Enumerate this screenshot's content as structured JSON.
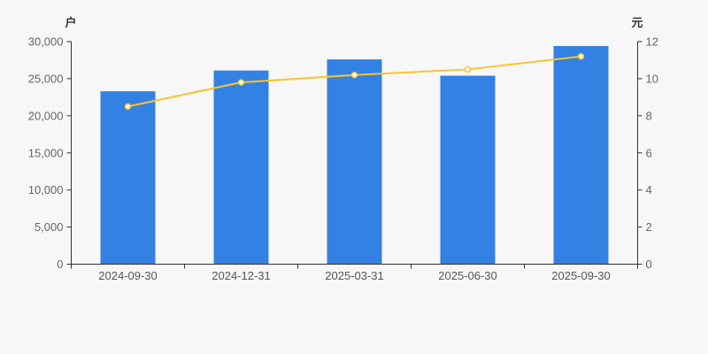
{
  "chart_data": {
    "type": "bar+line combo",
    "categories": [
      "2024-09-30",
      "2024-12-31",
      "2025-03-31",
      "2025-06-30",
      "2025-09-30"
    ],
    "series": [
      {
        "name": "户",
        "type": "bar",
        "axis": "left",
        "color": "#3381e2",
        "values": [
          23300,
          26100,
          27600,
          25400,
          29400
        ]
      },
      {
        "name": "元",
        "type": "line",
        "axis": "right",
        "color": "#fbc32c",
        "marker_fill": "#ffffff",
        "values": [
          8.5,
          9.8,
          10.2,
          10.5,
          11.2
        ]
      }
    ],
    "left_axis": {
      "label": "户",
      "min": 0,
      "max": 30000,
      "tick_step": 5000,
      "tick_labels": [
        "0",
        "5,000",
        "10,000",
        "15,000",
        "20,000",
        "25,000",
        "30,000"
      ]
    },
    "right_axis": {
      "label": "元",
      "min": 0,
      "max": 12,
      "tick_step": 2,
      "tick_labels": [
        "0",
        "2",
        "4",
        "6",
        "8",
        "10",
        "12"
      ]
    },
    "grid": false,
    "legend": false,
    "title": ""
  },
  "colors": {
    "background": "#f7f7f8",
    "axis_line": "#333333",
    "tick_label": "#666666",
    "category_label": "#555555"
  }
}
